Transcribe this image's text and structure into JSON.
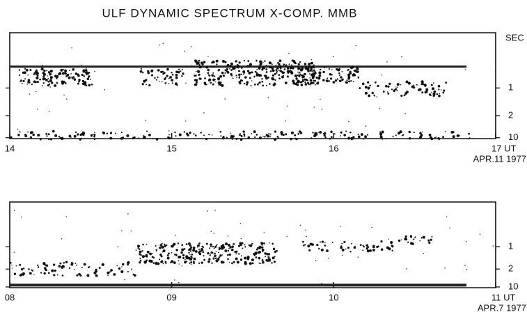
{
  "title": "ULF DYNAMIC SPECTRUM X-COMP. MMB",
  "chart_data": [
    {
      "type": "spectrogram",
      "xlim": [
        14,
        17
      ],
      "xticks": [
        14,
        15,
        16,
        {
          "value": 17,
          "label": "17 UT"
        }
      ],
      "ylabel": "SEC",
      "ylim": [
        0.5,
        12
      ],
      "yscale": "reciprocal",
      "yticks": [
        1,
        2,
        10
      ],
      "date": "APR.11 1977"
    },
    {
      "type": "spectrogram",
      "xlim": [
        8,
        11
      ],
      "xticks": [
        {
          "value": 8,
          "label": "08"
        },
        {
          "value": 9,
          "label": "09"
        },
        10,
        {
          "value": 11,
          "label": "11 UT"
        }
      ],
      "ylim": [
        0.5,
        12
      ],
      "yscale": "reciprocal",
      "yticks": [
        1,
        2,
        10
      ],
      "date": "APR.7 1977"
    }
  ]
}
